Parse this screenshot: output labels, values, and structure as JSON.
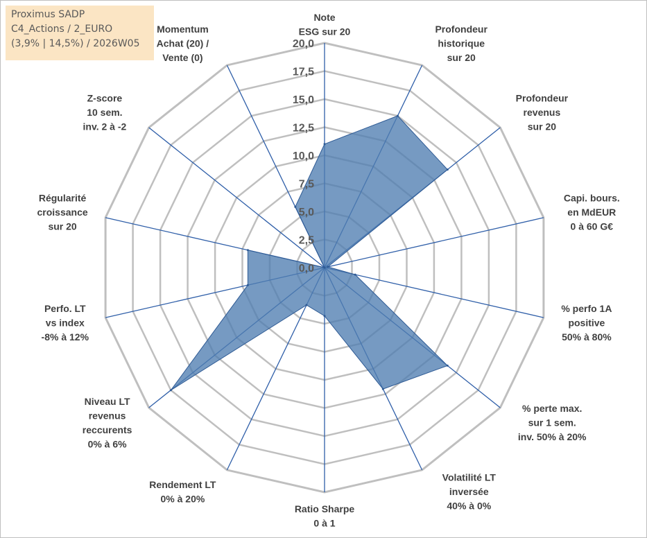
{
  "title_box": {
    "line1": "Proximus SADP",
    "line2": "C4_Actions / 2_EURO",
    "line3": "(3,9% | 14,5%) / 2026W05"
  },
  "chart_data": {
    "type": "radar",
    "range": [
      0,
      20
    ],
    "tick_labels": [
      "0,0",
      "2,5",
      "5,0",
      "7,5",
      "10,0",
      "12,5",
      "15,0",
      "17,5",
      "20,0"
    ],
    "grid": true,
    "axes": [
      [
        "Note",
        "ESG sur 20"
      ],
      [
        "Profondeur",
        "historique",
        "sur 20"
      ],
      [
        "Profondeur",
        "revenus",
        "sur 20"
      ],
      [
        "Capi. bours.",
        "en MdEUR",
        "0 à 60 G€"
      ],
      [
        "% perfo 1A",
        "positive",
        "50% à 80%"
      ],
      [
        "% perte max.",
        "sur 1 sem.",
        "inv. 50% à 20%"
      ],
      [
        "Volatilité LT",
        "inversée",
        "40% à 0%"
      ],
      [
        "Ratio Sharpe",
        "0 à 1"
      ],
      [
        "Rendement LT",
        "0% à 20%"
      ],
      [
        "Niveau LT",
        "revenus",
        "reccurents",
        "0% à 6%"
      ],
      [
        "Perfo. LT",
        "vs index",
        "-8% à 12%"
      ],
      [
        "Régularité",
        "croissance",
        "sur 20"
      ],
      [
        "Z-score",
        "10 sem.",
        "inv. 2 à -2"
      ],
      [
        "Momentum",
        "Achat (20) /",
        "Vente (0)"
      ]
    ],
    "values": [
      11,
      15,
      14,
      0.3,
      2.8,
      14,
      12,
      4.3,
      3.7,
      17.5,
      7,
      7,
      0,
      6
    ],
    "fill_color": "#4f7db1",
    "fill_opacity": 0.78,
    "spoke_color": "#2e5ea8",
    "grid_color": "#bfbfbf"
  }
}
